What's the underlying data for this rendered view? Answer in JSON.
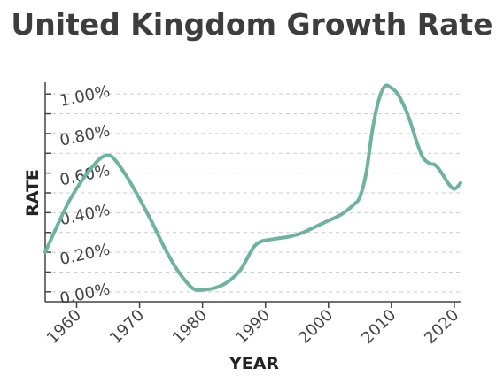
{
  "chart_data": {
    "type": "line",
    "title": "United Kingdom Growth Rate",
    "xlabel": "YEAR",
    "ylabel": "RATE",
    "xlim": [
      1955,
      2021
    ],
    "ylim": [
      -0.05,
      1.05
    ],
    "x_ticks": [
      1960,
      1970,
      1980,
      1990,
      2000,
      2010,
      2020
    ],
    "x_tick_labels": [
      "1960",
      "1970",
      "1980",
      "1990",
      "2000",
      "2010",
      "2020"
    ],
    "y_ticks": [
      0.0,
      0.2,
      0.4,
      0.6,
      0.8,
      1.0
    ],
    "y_tick_labels": [
      "0.00%",
      "0.20%",
      "0.40%",
      "0.60%",
      "0.80%",
      "1.00%"
    ],
    "grid": true,
    "series_color": "#6db3a0",
    "series": [
      {
        "x": [
          1955,
          1957,
          1959,
          1961,
          1963,
          1964,
          1965,
          1966,
          1968,
          1970,
          1972,
          1974,
          1976,
          1978,
          1979,
          1980,
          1982,
          1984,
          1986,
          1988,
          1989,
          1990,
          1992,
          1994,
          1996,
          1998,
          2000,
          2002,
          2004,
          2005,
          2006,
          2007,
          2008,
          2009,
          2010,
          2011,
          2012,
          2013,
          2014,
          2015,
          2016,
          2017,
          2018,
          2019,
          2020,
          2021
        ],
        "y": [
          0.2,
          0.34,
          0.47,
          0.57,
          0.65,
          0.68,
          0.69,
          0.67,
          0.58,
          0.47,
          0.35,
          0.22,
          0.11,
          0.03,
          0.01,
          0.01,
          0.02,
          0.05,
          0.11,
          0.22,
          0.25,
          0.26,
          0.27,
          0.28,
          0.3,
          0.33,
          0.36,
          0.39,
          0.44,
          0.48,
          0.6,
          0.82,
          0.97,
          1.04,
          1.03,
          1.0,
          0.94,
          0.86,
          0.76,
          0.68,
          0.65,
          0.64,
          0.6,
          0.55,
          0.52,
          0.55
        ]
      }
    ]
  }
}
